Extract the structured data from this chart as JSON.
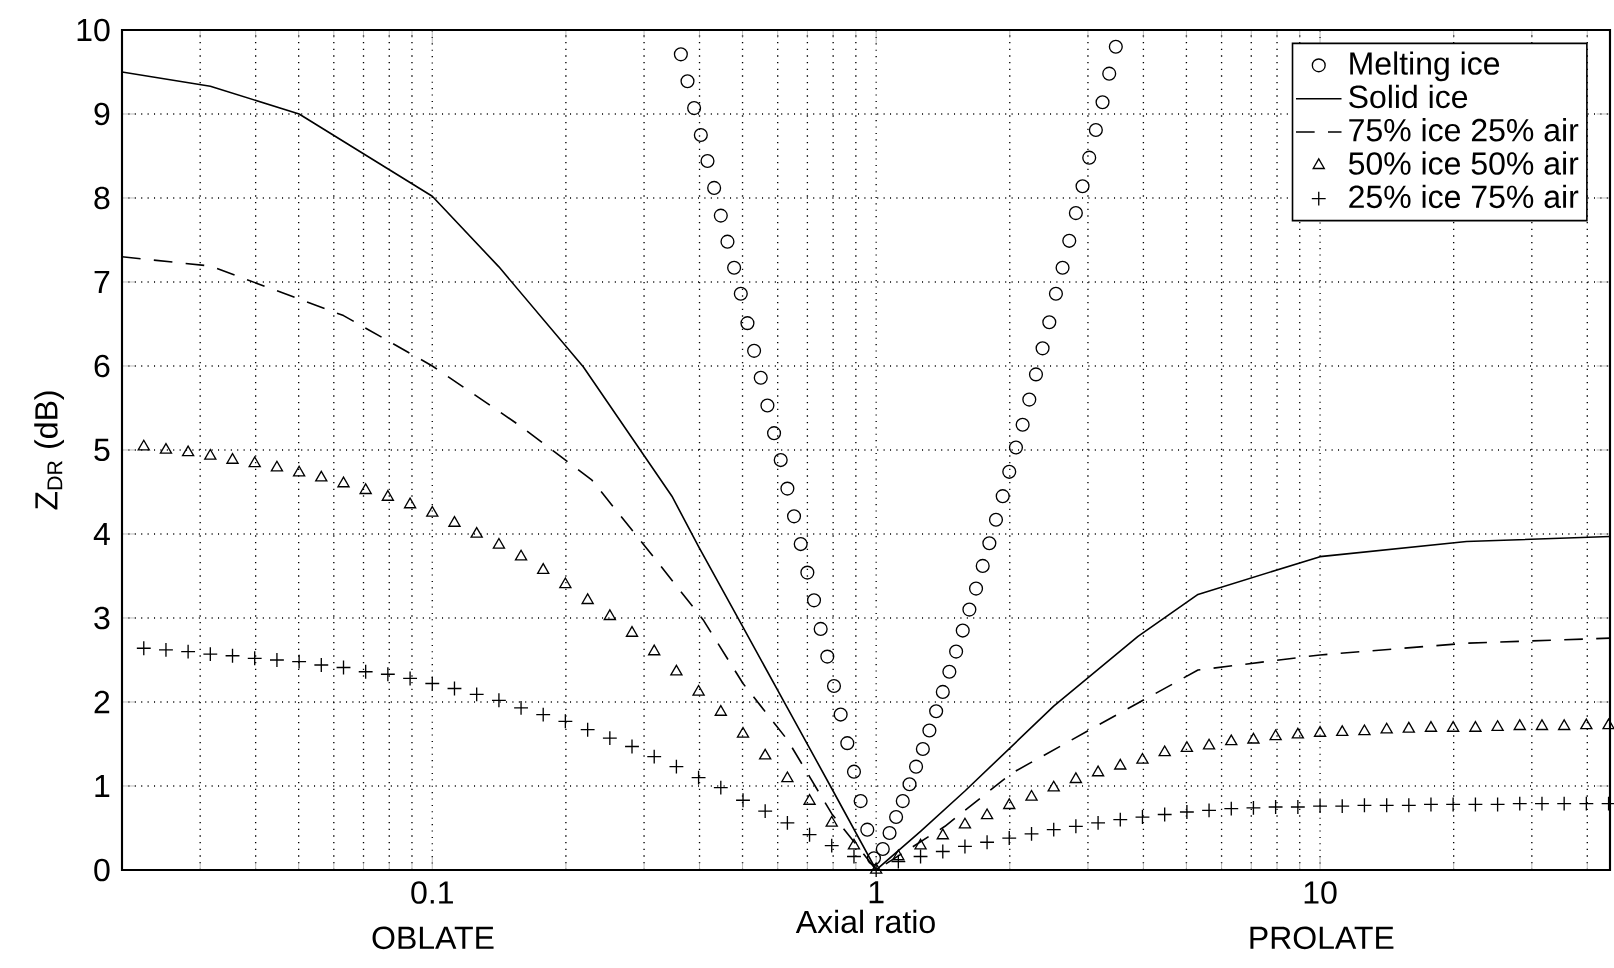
{
  "chart_data": {
    "type": "scatter",
    "xlabel": "Axial ratio",
    "ylabel": "Z$_{DR}$ (dB)",
    "annotations": [
      "OBLATE",
      "PROLATE"
    ],
    "log": "x",
    "grid": true,
    "legend": "top right",
    "xlim": [
      0.02,
      45
    ],
    "ylim": [
      0,
      10
    ],
    "xticks": [
      0.1,
      1,
      10
    ],
    "yticks": [
      0,
      1,
      2,
      3,
      4,
      5,
      6,
      7,
      8,
      9,
      10
    ],
    "series": [
      {
        "name": "Melting ice",
        "type": "scatter",
        "marker": "circle",
        "color": "#000000",
        "x": [
          0.3631,
          0.3758,
          0.389,
          0.4027,
          0.4169,
          0.4315,
          0.4467,
          0.4624,
          0.4786,
          0.4955,
          0.5129,
          0.5309,
          0.5495,
          0.5689,
          0.5888,
          0.6095,
          0.631,
          0.6531,
          0.6761,
          0.6998,
          0.7244,
          0.7499,
          0.7762,
          0.8035,
          0.8318,
          0.861,
          0.8913,
          0.9226,
          0.955,
          0.9886,
          1.035,
          1.072,
          1.109,
          1.148,
          1.189,
          1.23,
          1.274,
          1.318,
          1.365,
          1.413,
          1.462,
          1.514,
          1.567,
          1.622,
          1.679,
          1.738,
          1.799,
          1.862,
          1.928,
          1.995,
          2.065,
          2.138,
          2.213,
          2.291,
          2.371,
          2.455,
          2.541,
          2.63,
          2.723,
          2.818,
          2.917,
          3.02,
          3.126,
          3.236,
          3.35,
          3.467
        ],
        "values": [
          9.71,
          9.39,
          9.07,
          8.75,
          8.44,
          8.12,
          7.79,
          7.48,
          7.17,
          6.86,
          6.51,
          6.18,
          5.86,
          5.53,
          5.2,
          4.88,
          4.54,
          4.21,
          3.88,
          3.54,
          3.21,
          2.87,
          2.54,
          2.19,
          1.85,
          1.51,
          1.17,
          0.82,
          0.48,
          0.14,
          0.25,
          0.44,
          0.63,
          0.82,
          1.02,
          1.23,
          1.44,
          1.66,
          1.89,
          2.12,
          2.36,
          2.6,
          2.85,
          3.1,
          3.35,
          3.62,
          3.89,
          4.17,
          4.45,
          4.74,
          5.03,
          5.3,
          5.6,
          5.9,
          6.21,
          6.52,
          6.86,
          7.17,
          7.49,
          7.82,
          8.14,
          8.48,
          8.81,
          9.14,
          9.48,
          9.8
        ]
      },
      {
        "name": "Solid ice",
        "type": "line",
        "line_style": "solid",
        "color": "#000000",
        "x": [
          0.02,
          0.03162,
          0.05012,
          0.1,
          0.1413,
          0.2188,
          0.3467,
          0.3981,
          0.5012,
          0.631,
          0.7943,
          1,
          1.259,
          1.585,
          2.512,
          3.89,
          5.309,
          10,
          21.38,
          45
        ],
        "values": [
          9.5,
          9.33,
          9.0,
          8.02,
          7.18,
          5.99,
          4.45,
          3.85,
          2.89,
          1.93,
          0.97,
          0,
          0.46,
          0.94,
          1.95,
          2.78,
          3.28,
          3.73,
          3.91,
          3.97
        ]
      },
      {
        "name": "75% ice  25% air",
        "type": "line",
        "line_style": "dashed",
        "color": "#000000",
        "x": [
          0.02,
          0.03162,
          0.0631,
          0.1,
          0.1585,
          0.229,
          0.3236,
          0.4074,
          0.5012,
          0.631,
          0.7943,
          1,
          1.429,
          2.018,
          3.631,
          5.309,
          10,
          21.38,
          45
        ],
        "values": [
          7.3,
          7.19,
          6.6,
          6.0,
          5.28,
          4.64,
          3.65,
          2.98,
          2.22,
          1.55,
          0.67,
          0,
          0.52,
          1.15,
          1.9,
          2.38,
          2.56,
          2.7,
          2.76
        ]
      },
      {
        "name": "50% ice  50% air",
        "type": "scatter",
        "marker": "triangle",
        "color": "#000000",
        "x": [
          0.02239,
          0.02512,
          0.02818,
          0.03162,
          0.03548,
          0.03981,
          0.04467,
          0.05012,
          0.05623,
          0.0631,
          0.07079,
          0.07943,
          0.08913,
          0.1,
          0.1122,
          0.1259,
          0.1413,
          0.1585,
          0.1778,
          0.1995,
          0.2239,
          0.2512,
          0.2818,
          0.3162,
          0.3548,
          0.3981,
          0.4467,
          0.5012,
          0.5623,
          0.631,
          0.7079,
          0.7943,
          0.8913,
          1,
          1.122,
          1.259,
          1.413,
          1.585,
          1.778,
          1.995,
          2.239,
          2.512,
          2.818,
          3.162,
          3.548,
          3.981,
          4.467,
          5.012,
          5.623,
          6.31,
          7.079,
          7.943,
          8.913,
          10,
          11.22,
          12.59,
          14.13,
          15.85,
          17.78,
          19.95,
          22.39,
          25.12,
          28.18,
          31.62,
          35.48,
          39.81,
          44.67
        ],
        "values": [
          5.04,
          5.0,
          4.97,
          4.93,
          4.88,
          4.84,
          4.79,
          4.73,
          4.67,
          4.6,
          4.52,
          4.44,
          4.35,
          4.25,
          4.13,
          4.0,
          3.87,
          3.73,
          3.57,
          3.4,
          3.21,
          3.02,
          2.82,
          2.6,
          2.36,
          2.12,
          1.88,
          1.62,
          1.36,
          1.09,
          0.82,
          0.56,
          0.29,
          0,
          0.16,
          0.29,
          0.41,
          0.54,
          0.65,
          0.77,
          0.87,
          0.98,
          1.08,
          1.16,
          1.24,
          1.31,
          1.4,
          1.45,
          1.48,
          1.53,
          1.55,
          1.59,
          1.61,
          1.63,
          1.64,
          1.65,
          1.67,
          1.68,
          1.69,
          1.69,
          1.69,
          1.7,
          1.71,
          1.71,
          1.71,
          1.72,
          1.72
        ]
      },
      {
        "name": "25% ice  75% air",
        "type": "scatter",
        "marker": "cross",
        "color": "#000000",
        "x": [
          0.02239,
          0.02512,
          0.02818,
          0.03162,
          0.03548,
          0.03981,
          0.04467,
          0.05012,
          0.05623,
          0.0631,
          0.07079,
          0.07943,
          0.08913,
          0.1,
          0.1122,
          0.1259,
          0.1413,
          0.1585,
          0.1778,
          0.1995,
          0.2239,
          0.2512,
          0.2818,
          0.3162,
          0.3548,
          0.3981,
          0.4467,
          0.5012,
          0.5623,
          0.631,
          0.7079,
          0.7943,
          0.8913,
          1,
          1.122,
          1.259,
          1.413,
          1.585,
          1.778,
          1.995,
          2.239,
          2.512,
          2.818,
          3.162,
          3.548,
          3.981,
          4.467,
          5.012,
          5.623,
          6.31,
          7.079,
          7.943,
          8.913,
          10,
          11.22,
          12.59,
          14.13,
          15.85,
          17.78,
          19.95,
          22.39,
          25.12,
          28.18,
          31.62,
          35.48,
          39.81,
          44.67
        ],
        "values": [
          2.64,
          2.62,
          2.6,
          2.57,
          2.55,
          2.52,
          2.5,
          2.48,
          2.44,
          2.41,
          2.36,
          2.33,
          2.28,
          2.22,
          2.16,
          2.09,
          2.02,
          1.93,
          1.85,
          1.77,
          1.67,
          1.57,
          1.47,
          1.35,
          1.23,
          1.1,
          0.98,
          0.83,
          0.7,
          0.56,
          0.42,
          0.29,
          0.16,
          0,
          0.1,
          0.16,
          0.22,
          0.28,
          0.33,
          0.38,
          0.43,
          0.48,
          0.52,
          0.56,
          0.6,
          0.63,
          0.66,
          0.69,
          0.71,
          0.73,
          0.74,
          0.75,
          0.75,
          0.76,
          0.76,
          0.77,
          0.77,
          0.77,
          0.78,
          0.78,
          0.78,
          0.78,
          0.79,
          0.79,
          0.79,
          0.79,
          0.79
        ]
      }
    ]
  }
}
